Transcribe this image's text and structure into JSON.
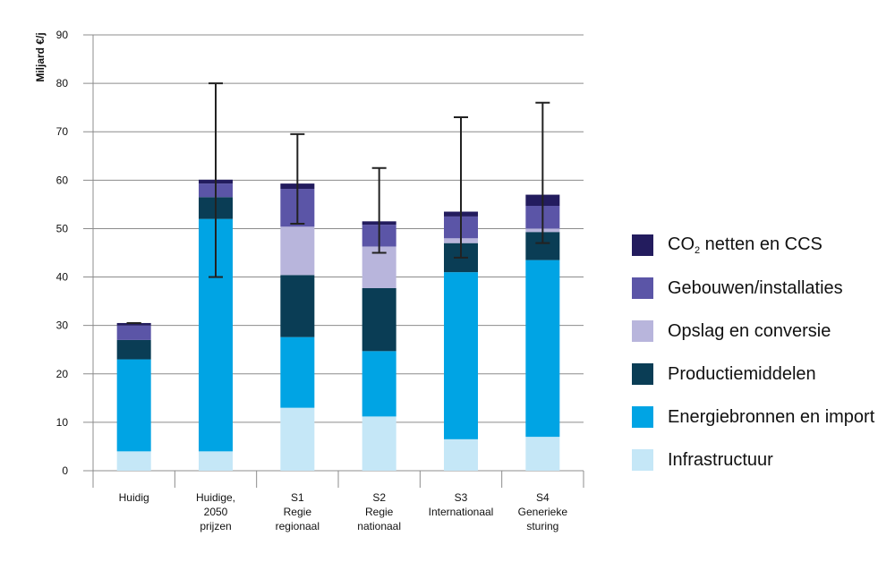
{
  "chart_data": {
    "type": "bar",
    "stacked": true,
    "ylabel": "Miljard €/j",
    "ylim": [
      0,
      90
    ],
    "yticks": [
      0,
      10,
      20,
      30,
      40,
      50,
      60,
      70,
      80,
      90
    ],
    "grid": true,
    "legend_position": "right",
    "categories": [
      [
        "Huidig"
      ],
      [
        "Huidige,",
        "2050",
        "prijzen"
      ],
      [
        "S1",
        "Regie",
        "regionaal"
      ],
      [
        "S2",
        "Regie",
        "nationaal"
      ],
      [
        "S3",
        "Internationaal"
      ],
      [
        "S4",
        "Generieke",
        "sturing"
      ]
    ],
    "series": [
      {
        "name": "Infrastructuur",
        "color": "#c5e7f7",
        "values": [
          4.0,
          4.0,
          13.0,
          11.2,
          6.5,
          7.0
        ]
      },
      {
        "name": "Energiebronnen en import",
        "color": "#00a4e4",
        "values": [
          19.0,
          48.0,
          14.6,
          13.5,
          34.5,
          36.5
        ]
      },
      {
        "name": "Productiemiddelen",
        "color": "#0a3d55",
        "values": [
          4.0,
          4.5,
          12.8,
          13.0,
          6.0,
          5.8
        ]
      },
      {
        "name": "Opslag en conversie",
        "color": "#b8b5dc",
        "values": [
          0.0,
          0.0,
          10.0,
          8.6,
          1.0,
          0.7
        ]
      },
      {
        "name": "Gebouwen/installaties",
        "color": "#5b55a7",
        "values": [
          3.0,
          2.8,
          7.8,
          4.5,
          4.5,
          4.7
        ]
      },
      {
        "name": "CO2 netten en CCS",
        "color": "#231c5e",
        "values": [
          0.5,
          0.8,
          1.1,
          0.7,
          1.0,
          2.3
        ]
      }
    ],
    "error_bars": [
      {
        "low": 30.5,
        "high": 30.5
      },
      {
        "low": 40.0,
        "high": 80.0
      },
      {
        "low": 51.0,
        "high": 69.5
      },
      {
        "low": 45.0,
        "high": 62.5
      },
      {
        "low": 44.0,
        "high": 73.0
      },
      {
        "low": 47.0,
        "high": 76.0
      }
    ]
  },
  "legend": {
    "items": [
      {
        "label": "CO",
        "sub": "2",
        "suffix": " netten en CCS",
        "color": "#231c5e"
      },
      {
        "label": "Gebouwen/installaties",
        "sub": "",
        "suffix": "",
        "color": "#5b55a7"
      },
      {
        "label": "Opslag en conversie",
        "sub": "",
        "suffix": "",
        "color": "#b8b5dc"
      },
      {
        "label": "Productiemiddelen",
        "sub": "",
        "suffix": "",
        "color": "#0a3d55"
      },
      {
        "label": "Energiebronnen en import",
        "sub": "",
        "suffix": "",
        "color": "#00a4e4"
      },
      {
        "label": "Infrastructuur",
        "sub": "",
        "suffix": "",
        "color": "#c5e7f7"
      }
    ]
  }
}
